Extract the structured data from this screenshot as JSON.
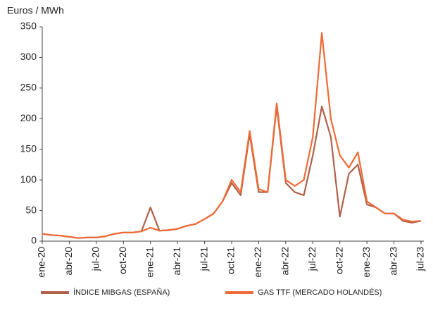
{
  "chart_data": {
    "type": "line",
    "y_label": "Euros / MWh",
    "categories": [
      "ene-20",
      null,
      null,
      "abr-20",
      null,
      null,
      "jul-20",
      null,
      null,
      "oct-20",
      null,
      null,
      "ene-21",
      null,
      null,
      "abr-21",
      null,
      null,
      "jul-21",
      null,
      null,
      "oct-21",
      null,
      null,
      "ene-22",
      null,
      null,
      "abr-22",
      null,
      null,
      "jul-22",
      null,
      null,
      "oct-22",
      null,
      null,
      "ene-23",
      null,
      null,
      "abr-23",
      null,
      null,
      "jul-23"
    ],
    "series": [
      {
        "name": "ÍNDICE MIBGAS (ESPAÑA)",
        "color": "#b0604a",
        "values": [
          12,
          10,
          9,
          7,
          5,
          6,
          6,
          8,
          12,
          14,
          14,
          16,
          55,
          17,
          18,
          20,
          25,
          28,
          36,
          45,
          65,
          95,
          75,
          175,
          80,
          80,
          220,
          95,
          80,
          75,
          140,
          220,
          170,
          40,
          110,
          125,
          60,
          55,
          45,
          45,
          33,
          30,
          33
        ]
      },
      {
        "name": "GAS TTF (MERCADO HOLANDÉS)",
        "color": "#f06a35",
        "values": [
          12,
          10,
          9,
          7,
          5,
          6,
          6,
          8,
          12,
          14,
          14,
          16,
          22,
          17,
          18,
          20,
          25,
          28,
          36,
          45,
          65,
          100,
          80,
          180,
          85,
          80,
          225,
          100,
          90,
          100,
          170,
          340,
          200,
          140,
          120,
          145,
          65,
          55,
          45,
          45,
          35,
          32,
          33
        ]
      }
    ],
    "ylim": [
      0,
      350
    ],
    "yticks": [
      0,
      50,
      100,
      150,
      200,
      250,
      300,
      350
    ]
  }
}
